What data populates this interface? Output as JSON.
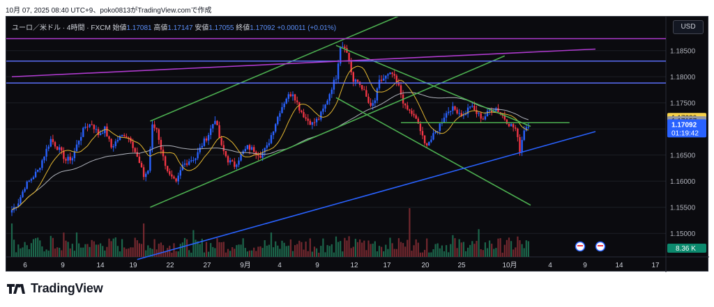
{
  "caption": "10月 07, 2025 08:40 UTC+9、poko0813がTradingView.comで作成",
  "legend": {
    "symbol": "ユーロ／米ドル · 4時間 · FXCM",
    "open_label": "始値",
    "open": "1.17081",
    "high_label": "高値",
    "high": "1.17147",
    "low_label": "安値",
    "low": "1.17055",
    "close_label": "終値",
    "close": "1.17092",
    "change": "+0.00011 (+0.01%)"
  },
  "currency_button": "USD",
  "brand": "TradingView",
  "colors": {
    "bull": "#2962ff",
    "bear": "#f23645",
    "ma_fast": "#e5b831",
    "ma_slow": "#b2b5be",
    "channel": "#4caf50",
    "trend_blue": "#2962ff",
    "resistance": "#5b6ff9",
    "magenta": "#b03bd0"
  },
  "chart_data": {
    "type": "candlestick",
    "symbol": "EUR/USD",
    "timeframe": "4時間",
    "ylim": [
      1.1455,
      1.1915
    ],
    "y_ticks": [
      "1.18500",
      "1.18000",
      "1.17500",
      "1.17000",
      "1.16500",
      "1.16000",
      "1.15500",
      "1.15000"
    ],
    "x_ticks": [
      "6",
      "9",
      "14",
      "19",
      "22",
      "27",
      "9月",
      "4",
      "9",
      "12",
      "17",
      "20",
      "25",
      "10月",
      "4",
      "9",
      "14",
      "17"
    ],
    "price_labels": {
      "high_level": "1.17220",
      "last_level": "1.17157",
      "current": "1.17092",
      "countdown": "01:19:42",
      "volume": "8.36 K"
    },
    "price_path": [
      [
        0,
        1.1545
      ],
      [
        3,
        1.156
      ],
      [
        6,
        1.159
      ],
      [
        9,
        1.1605
      ],
      [
        12,
        1.162
      ],
      [
        15,
        1.165
      ],
      [
        18,
        1.168
      ],
      [
        22,
        1.166
      ],
      [
        25,
        1.164
      ],
      [
        28,
        1.1645
      ],
      [
        31,
        1.168
      ],
      [
        34,
        1.1705
      ],
      [
        37,
        1.171
      ],
      [
        40,
        1.169
      ],
      [
        43,
        1.17
      ],
      [
        46,
        1.1665
      ],
      [
        49,
        1.168
      ],
      [
        52,
        1.169
      ],
      [
        55,
        1.168
      ],
      [
        58,
        1.1645
      ],
      [
        61,
        1.161
      ],
      [
        63,
        1.162
      ],
      [
        65,
        1.1705
      ],
      [
        67,
        1.17
      ],
      [
        70,
        1.1645
      ],
      [
        73,
        1.161
      ],
      [
        76,
        1.1595
      ],
      [
        79,
        1.163
      ],
      [
        82,
        1.164
      ],
      [
        85,
        1.1645
      ],
      [
        88,
        1.167
      ],
      [
        91,
        1.169
      ],
      [
        94,
        1.172
      ],
      [
        97,
        1.1665
      ],
      [
        100,
        1.164
      ],
      [
        103,
        1.163
      ],
      [
        106,
        1.165
      ],
      [
        109,
        1.1665
      ],
      [
        112,
        1.166
      ],
      [
        115,
        1.165
      ],
      [
        118,
        1.1665
      ],
      [
        121,
        1.17
      ],
      [
        124,
        1.1735
      ],
      [
        127,
        1.176
      ],
      [
        130,
        1.177
      ],
      [
        133,
        1.174
      ],
      [
        136,
        1.172
      ],
      [
        139,
        1.171
      ],
      [
        142,
        1.172
      ],
      [
        145,
        1.1745
      ],
      [
        148,
        1.178
      ],
      [
        150,
        1.18
      ],
      [
        152,
        1.186
      ],
      [
        154,
        1.186
      ],
      [
        156,
        1.183
      ],
      [
        158,
        1.179
      ],
      [
        160,
        1.179
      ],
      [
        162,
        1.178
      ],
      [
        164,
        1.176
      ],
      [
        166,
        1.174
      ],
      [
        168,
        1.1755
      ],
      [
        170,
        1.179
      ],
      [
        173,
        1.18
      ],
      [
        176,
        1.1805
      ],
      [
        179,
        1.178
      ],
      [
        182,
        1.174
      ],
      [
        185,
        1.173
      ],
      [
        188,
        1.171
      ],
      [
        191,
        1.167
      ],
      [
        194,
        1.168
      ],
      [
        197,
        1.17
      ],
      [
        200,
        1.1725
      ],
      [
        203,
        1.174
      ],
      [
        206,
        1.1735
      ],
      [
        209,
        1.1725
      ],
      [
        212,
        1.1745
      ],
      [
        215,
        1.173
      ],
      [
        218,
        1.172
      ],
      [
        221,
        1.1735
      ],
      [
        224,
        1.174
      ],
      [
        227,
        1.1725
      ],
      [
        230,
        1.171
      ],
      [
        233,
        1.17
      ],
      [
        235,
        1.166
      ],
      [
        237,
        1.17
      ],
      [
        239,
        1.1709
      ]
    ],
    "series": [
      {
        "name": "",
        "kind": "candles"
      },
      {
        "name": "",
        "kind": "moving-average-fast"
      },
      {
        "name": "",
        "kind": "moving-average-slow"
      },
      {
        "name": "",
        "kind": "volume"
      }
    ],
    "lines": [
      {
        "kind": "channel",
        "color": "channel",
        "from": [
          64,
          1.1715
        ],
        "to": [
          184,
          1.1925
        ]
      },
      {
        "kind": "channel",
        "color": "channel",
        "from": [
          64,
          1.155
        ],
        "to": [
          228,
          1.184
        ]
      },
      {
        "kind": "channel",
        "color": "channel",
        "from": [
          150,
          1.186
        ],
        "to": [
          240,
          1.1705
        ]
      },
      {
        "kind": "channel",
        "color": "channel",
        "from": [
          150,
          1.176
        ],
        "to": [
          240,
          1.1554
        ]
      },
      {
        "kind": "level",
        "color": "channel",
        "from": [
          180,
          1.1712
        ],
        "to": [
          258,
          1.1712
        ]
      },
      {
        "kind": "trend",
        "color": "trend_blue",
        "from": [
          58,
          1.145
        ],
        "to": [
          270,
          1.1695
        ]
      },
      {
        "kind": "horizontal",
        "color": "resistance",
        "y": 1.183
      },
      {
        "kind": "horizontal",
        "color": "resistance",
        "y": 1.1788
      },
      {
        "kind": "horizontal",
        "color": "magenta",
        "y": 1.1873
      },
      {
        "kind": "trend",
        "color": "magenta",
        "from": [
          0,
          1.18
        ],
        "to": [
          270,
          1.1853
        ]
      }
    ],
    "grid": false,
    "legend_position": "top-left"
  }
}
